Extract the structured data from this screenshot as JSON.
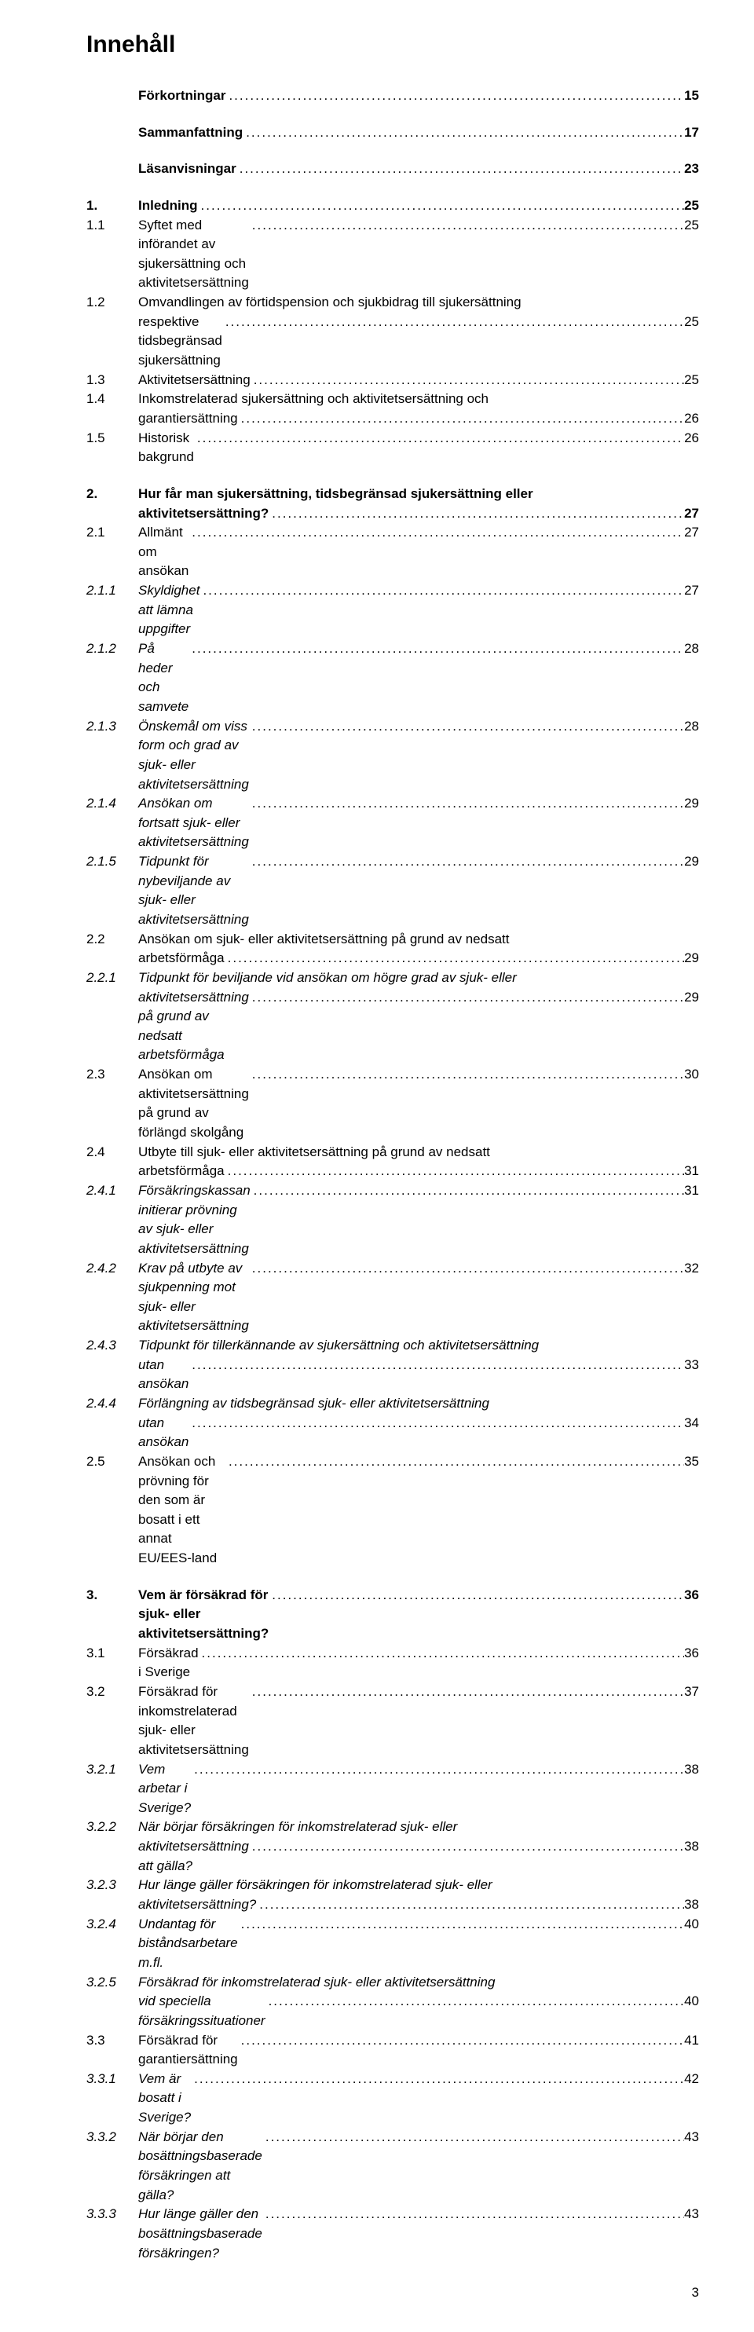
{
  "title": "Innehåll",
  "leader_char": ".",
  "page_number": "3",
  "fonts": {
    "title_size_pt": 22,
    "body_size_pt": 12
  },
  "colors": {
    "text": "#000000",
    "background": "#ffffff"
  },
  "entries": [
    {
      "num": "",
      "label": "Förkortningar",
      "page": "15",
      "bold": true,
      "italic": false,
      "gap": true
    },
    {
      "num": "",
      "label": "Sammanfattning",
      "page": "17",
      "bold": true,
      "italic": false,
      "gap": true
    },
    {
      "num": "",
      "label": "Läsanvisningar",
      "page": "23",
      "bold": true,
      "italic": false,
      "gap": true
    },
    {
      "num": "1.",
      "label": "Inledning",
      "page": "25",
      "bold": true,
      "italic": false,
      "gap": true
    },
    {
      "num": "1.1",
      "label": "Syftet med införandet av sjukersättning och aktivitetsersättning",
      "page": "25",
      "bold": false,
      "italic": false,
      "gap": false
    },
    {
      "num": "1.2",
      "label": "Omvandlingen av förtidspension och sjukbidrag till sjukersättning",
      "cont": "respektive tidsbegränsad sjukersättning",
      "page": "25",
      "bold": false,
      "italic": false,
      "gap": false
    },
    {
      "num": "1.3",
      "label": "Aktivitetsersättning",
      "page": "25",
      "bold": false,
      "italic": false,
      "gap": false
    },
    {
      "num": "1.4",
      "label": "Inkomstrelaterad sjukersättning och aktivitetsersättning och",
      "cont": "garantiersättning",
      "page": "26",
      "bold": false,
      "italic": false,
      "gap": false
    },
    {
      "num": "1.5",
      "label": "Historisk bakgrund",
      "page": "26",
      "bold": false,
      "italic": false,
      "gap": false
    },
    {
      "num": "2.",
      "label": "Hur får man sjukersättning, tidsbegränsad sjukersättning eller",
      "cont": "aktivitetsersättning?",
      "page": "27",
      "bold": true,
      "italic": false,
      "gap": true
    },
    {
      "num": "2.1",
      "label": "Allmänt om ansökan",
      "page": "27",
      "bold": false,
      "italic": false,
      "gap": false
    },
    {
      "num": "2.1.1",
      "label": "Skyldighet att lämna uppgifter",
      "page": "27",
      "bold": false,
      "italic": true,
      "gap": false
    },
    {
      "num": "2.1.2",
      "label": "På heder och samvete",
      "page": "28",
      "bold": false,
      "italic": true,
      "gap": false
    },
    {
      "num": "2.1.3",
      "label": "Önskemål om viss form och grad av sjuk- eller aktivitetsersättning",
      "page": "28",
      "bold": false,
      "italic": true,
      "gap": false
    },
    {
      "num": "2.1.4",
      "label": "Ansökan om fortsatt sjuk- eller aktivitetsersättning",
      "page": "29",
      "bold": false,
      "italic": true,
      "gap": false
    },
    {
      "num": "2.1.5",
      "label": "Tidpunkt för nybeviljande av sjuk- eller aktivitetsersättning",
      "page": "29",
      "bold": false,
      "italic": true,
      "gap": false
    },
    {
      "num": "2.2",
      "label": "Ansökan om sjuk- eller aktivitetsersättning på grund av nedsatt",
      "cont": "arbetsförmåga",
      "page": "29",
      "bold": false,
      "italic": false,
      "gap": false
    },
    {
      "num": "2.2.1",
      "label": "Tidpunkt för beviljande vid ansökan om högre grad av sjuk- eller",
      "cont": "aktivitetsersättning på grund av nedsatt arbetsförmåga",
      "page": "29",
      "bold": false,
      "italic": true,
      "gap": false
    },
    {
      "num": "2.3",
      "label": "Ansökan om aktivitetsersättning på grund av förlängd skolgång",
      "page": "30",
      "bold": false,
      "italic": false,
      "gap": false
    },
    {
      "num": "2.4",
      "label": "Utbyte till sjuk- eller aktivitetsersättning på grund av nedsatt",
      "cont": "arbetsförmåga",
      "page": "31",
      "bold": false,
      "italic": false,
      "gap": false
    },
    {
      "num": "2.4.1",
      "label": "Försäkringskassan initierar prövning av sjuk- eller aktivitetsersättning",
      "page": "31",
      "bold": false,
      "italic": true,
      "gap": false
    },
    {
      "num": "2.4.2",
      "label": "Krav på utbyte av sjukpenning mot sjuk- eller aktivitetsersättning",
      "page": "32",
      "bold": false,
      "italic": true,
      "gap": false
    },
    {
      "num": "2.4.3",
      "label": "Tidpunkt för tillerkännande av sjukersättning och aktivitetsersättning",
      "cont": "utan ansökan",
      "page": "33",
      "bold": false,
      "italic": true,
      "gap": false
    },
    {
      "num": "2.4.4",
      "label": "Förlängning av tidsbegränsad sjuk- eller aktivitetsersättning",
      "cont": "utan ansökan",
      "page": "34",
      "bold": false,
      "italic": true,
      "gap": false
    },
    {
      "num": "2.5",
      "label": "Ansökan och prövning för den som är bosatt i ett annat EU/EES-land",
      "page": "35",
      "bold": false,
      "italic": false,
      "gap": false
    },
    {
      "num": "3.",
      "label": "Vem är försäkrad för sjuk- eller aktivitetsersättning?",
      "page": "36",
      "bold": true,
      "italic": false,
      "gap": true
    },
    {
      "num": "3.1",
      "label": "Försäkrad i Sverige",
      "page": "36",
      "bold": false,
      "italic": false,
      "gap": false
    },
    {
      "num": "3.2",
      "label": "Försäkrad för inkomstrelaterad sjuk- eller aktivitetsersättning",
      "page": "37",
      "bold": false,
      "italic": false,
      "gap": false
    },
    {
      "num": "3.2.1",
      "label": "Vem arbetar i Sverige?",
      "page": "38",
      "bold": false,
      "italic": true,
      "gap": false
    },
    {
      "num": "3.2.2",
      "label": "När börjar försäkringen för inkomstrelaterad sjuk- eller",
      "cont": "aktivitetsersättning att gälla?",
      "page": "38",
      "bold": false,
      "italic": true,
      "gap": false
    },
    {
      "num": "3.2.3",
      "label": "Hur länge gäller försäkringen för inkomstrelaterad sjuk- eller",
      "cont": "aktivitetsersättning?",
      "page": "38",
      "bold": false,
      "italic": true,
      "gap": false
    },
    {
      "num": "3.2.4",
      "label": "Undantag för biståndsarbetare m.fl.",
      "page": "40",
      "bold": false,
      "italic": true,
      "gap": false
    },
    {
      "num": "3.2.5",
      "label": "Försäkrad för inkomstrelaterad sjuk- eller aktivitetsersättning",
      "cont": "vid speciella försäkringssituationer",
      "page": "40",
      "bold": false,
      "italic": true,
      "gap": false
    },
    {
      "num": "3.3",
      "label": "Försäkrad för garantiersättning",
      "page": "41",
      "bold": false,
      "italic": false,
      "gap": false
    },
    {
      "num": "3.3.1",
      "label": "Vem är bosatt i Sverige?",
      "page": "42",
      "bold": false,
      "italic": true,
      "gap": false
    },
    {
      "num": "3.3.2",
      "label": "När börjar den bosättningsbaserade försäkringen att gälla?",
      "page": "43",
      "bold": false,
      "italic": true,
      "gap": false
    },
    {
      "num": "3.3.3",
      "label": "Hur länge gäller den bosättningsbaserade försäkringen?",
      "page": "43",
      "bold": false,
      "italic": true,
      "gap": false
    }
  ]
}
